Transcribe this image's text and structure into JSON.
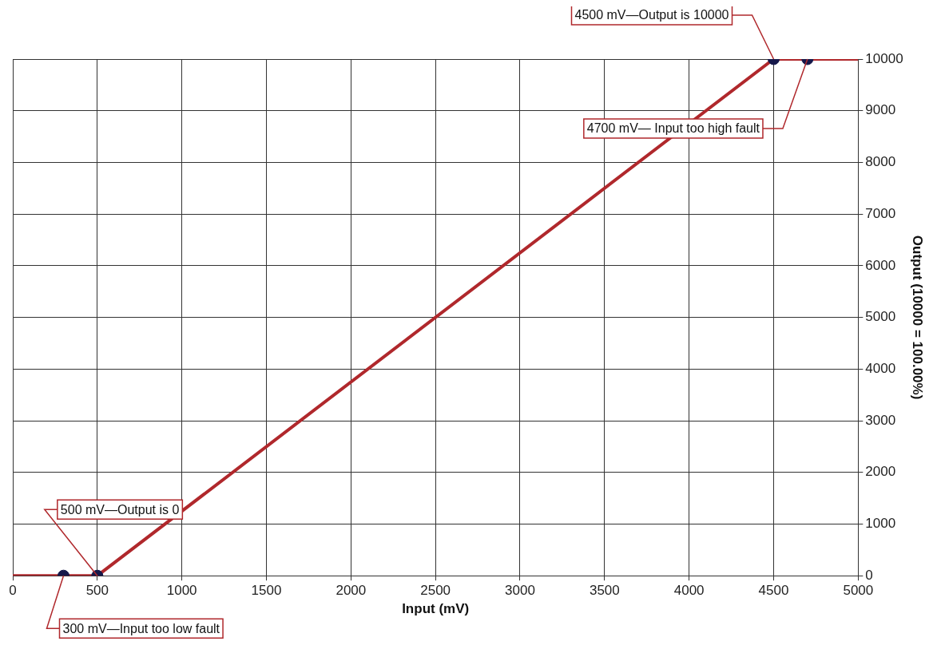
{
  "chart_data": {
    "type": "line",
    "xlabel": "Input (mV)",
    "ylabel": "Output (10000 = 100.00%)",
    "xlim": [
      0,
      5000
    ],
    "xticks": [
      0,
      500,
      1000,
      1500,
      2000,
      2500,
      3000,
      3500,
      4000,
      4500,
      5000
    ],
    "ylim": [
      0,
      10000
    ],
    "yticks": [
      0,
      1000,
      2000,
      3000,
      4000,
      5000,
      6000,
      7000,
      8000,
      9000,
      10000
    ],
    "grid": true,
    "legend": false,
    "series": [
      {
        "type": "line",
        "color": "#b0282c",
        "marker": "none",
        "x": [
          0,
          500,
          4500,
          5000
        ],
        "values": [
          0,
          0,
          10000,
          10000
        ]
      },
      {
        "type": "scatter",
        "color": "#15184a",
        "marker": "circle",
        "x": [
          300,
          500,
          4500,
          4700
        ],
        "values": [
          0,
          0,
          10000,
          10000
        ]
      }
    ],
    "annotations": [
      {
        "text": "500 mV—Output is 0",
        "x": 500,
        "y": 0
      },
      {
        "text": "300 mV—Input too low fault",
        "x": 300,
        "y": 0
      },
      {
        "text": "4500 mV—Output is 10000",
        "x": 4500,
        "y": 10000
      },
      {
        "text": "4700 mV— Input too high fault",
        "x": 4700,
        "y": 10000
      }
    ]
  }
}
